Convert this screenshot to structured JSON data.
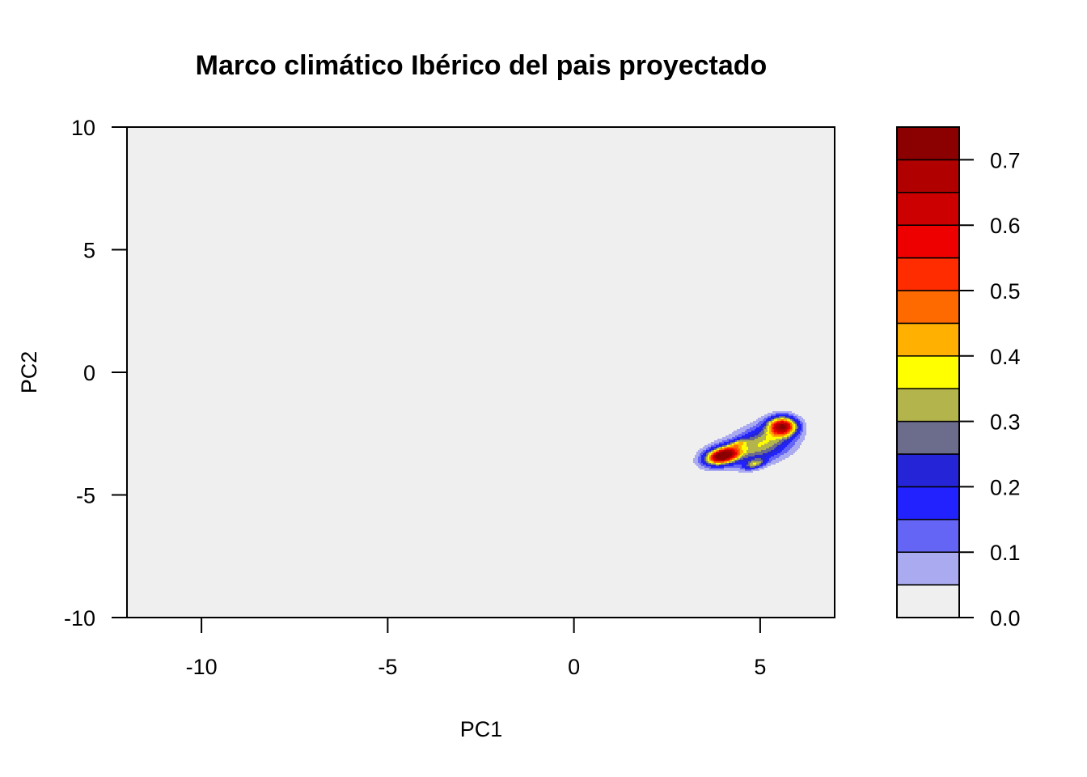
{
  "chart_data": {
    "type": "heatmap",
    "title": "Marco climático Ibérico del pais proyectado",
    "xlabel": "PC1",
    "ylabel": "PC2",
    "xlim": [
      -12,
      7
    ],
    "ylim": [
      -10,
      10
    ],
    "x_ticks": [
      -10,
      -5,
      0,
      5
    ],
    "y_ticks": [
      -10,
      -5,
      0,
      5,
      10
    ],
    "grid": false,
    "background_color": "#efefef",
    "density_peaks": [
      {
        "x": 5.6,
        "y": -2.2,
        "value": 0.74
      },
      {
        "x": 4.0,
        "y": -3.4,
        "value": 0.72
      },
      {
        "x": 4.85,
        "y": -3.75,
        "value": 0.42
      },
      {
        "x": 4.4,
        "y": -2.9,
        "value": 0.36
      }
    ],
    "colorbar": {
      "min": 0.0,
      "max": 0.75,
      "ticks": [
        0.0,
        0.1,
        0.2,
        0.3,
        0.4,
        0.5,
        0.6,
        0.7
      ],
      "tick_labels": [
        "0.0",
        "0.1",
        "0.2",
        "0.3",
        "0.4",
        "0.5",
        "0.6",
        "0.7"
      ],
      "bins": [
        {
          "from": 0.0,
          "to": 0.05,
          "color": "#efefef"
        },
        {
          "from": 0.05,
          "to": 0.1,
          "color": "#aaaaf0"
        },
        {
          "from": 0.1,
          "to": 0.15,
          "color": "#6464f5"
        },
        {
          "from": 0.15,
          "to": 0.2,
          "color": "#2222ff"
        },
        {
          "from": 0.2,
          "to": 0.25,
          "color": "#2525d7"
        },
        {
          "from": 0.25,
          "to": 0.3,
          "color": "#6c6c8c"
        },
        {
          "from": 0.3,
          "to": 0.35,
          "color": "#b4b44c"
        },
        {
          "from": 0.35,
          "to": 0.4,
          "color": "#ffff00"
        },
        {
          "from": 0.4,
          "to": 0.45,
          "color": "#ffb000"
        },
        {
          "from": 0.45,
          "to": 0.5,
          "color": "#ff6a00"
        },
        {
          "from": 0.5,
          "to": 0.55,
          "color": "#ff2c00"
        },
        {
          "from": 0.55,
          "to": 0.6,
          "color": "#ee0000"
        },
        {
          "from": 0.6,
          "to": 0.65,
          "color": "#cc0000"
        },
        {
          "from": 0.65,
          "to": 0.7,
          "color": "#b00000"
        },
        {
          "from": 0.7,
          "to": 0.75,
          "color": "#8b0000"
        }
      ]
    }
  }
}
